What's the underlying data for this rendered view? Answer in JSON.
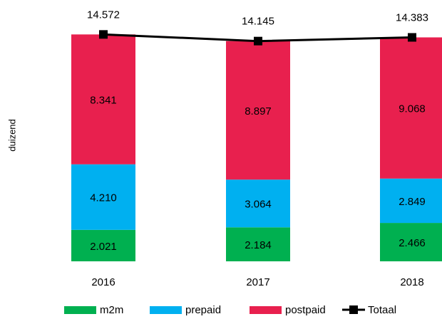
{
  "chart_data": {
    "type": "bar",
    "stacked": true,
    "y_label": "duizend",
    "categories": [
      "2016",
      "2017",
      "2018"
    ],
    "ylim": [
      0,
      15000
    ],
    "series": [
      {
        "name": "m2m",
        "color": "#00b050",
        "values": [
          2021,
          2184,
          2466
        ],
        "value_labels": [
          "2.021",
          "2.184",
          "2.466"
        ]
      },
      {
        "name": "prepaid",
        "color": "#00b0f0",
        "values": [
          4210,
          3064,
          2849
        ],
        "value_labels": [
          "4.210",
          "3.064",
          "2.849"
        ]
      },
      {
        "name": "postpaid",
        "color": "#e8204e",
        "values": [
          8341,
          8897,
          9068
        ],
        "value_labels": [
          "8.341",
          "8.897",
          "9.068"
        ]
      },
      {
        "name": "Totaal",
        "type": "line",
        "color": "#000000",
        "values": [
          14572,
          14145,
          14383
        ],
        "value_labels": [
          "14.572",
          "14.145",
          "14.383"
        ]
      }
    ]
  }
}
